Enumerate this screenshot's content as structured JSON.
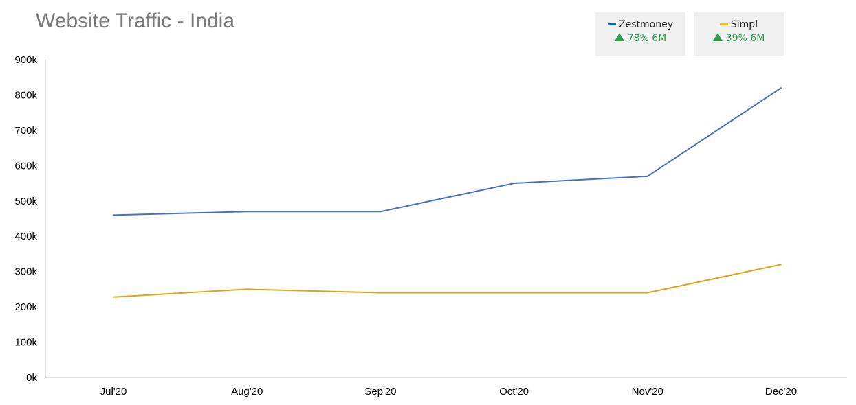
{
  "title": "Website Traffic - India",
  "legend": [
    {
      "name": "Zestmoney",
      "color": "#0070c0",
      "kpi_icon": "triangle-up-icon",
      "kpi_text": "78% 6M",
      "kpi_color": "#2e9e4b"
    },
    {
      "name": "Simpl",
      "color": "#ffc000",
      "kpi_icon": "triangle-up-icon",
      "kpi_text": "39% 6M",
      "kpi_color": "#2e9e4b"
    }
  ],
  "chart_data": {
    "type": "line",
    "title": "Website Traffic - India",
    "categories": [
      "Jul'20",
      "Aug'20",
      "Sep'20",
      "Oct'20",
      "Nov'20",
      "Dec'20"
    ],
    "series": [
      {
        "name": "Zestmoney",
        "color": "#4472c4",
        "values": [
          460000,
          470000,
          470000,
          550000,
          570000,
          820000
        ]
      },
      {
        "name": "Simpl",
        "color": "#e0a31a",
        "values": [
          228000,
          250000,
          240000,
          240000,
          240000,
          320000
        ]
      }
    ],
    "ylim": [
      0,
      900000
    ],
    "yticks": [
      {
        "value": 0,
        "label": "0k"
      },
      {
        "value": 100000,
        "label": "100k"
      },
      {
        "value": 200000,
        "label": "200k"
      },
      {
        "value": 300000,
        "label": "300k"
      },
      {
        "value": 400000,
        "label": "400k"
      },
      {
        "value": 500000,
        "label": "500k"
      },
      {
        "value": 600000,
        "label": "600k"
      },
      {
        "value": 700000,
        "label": "700k"
      },
      {
        "value": 800000,
        "label": "800k"
      },
      {
        "value": 900000,
        "label": "900k"
      }
    ],
    "grid": false,
    "legend_position": "top-right"
  }
}
